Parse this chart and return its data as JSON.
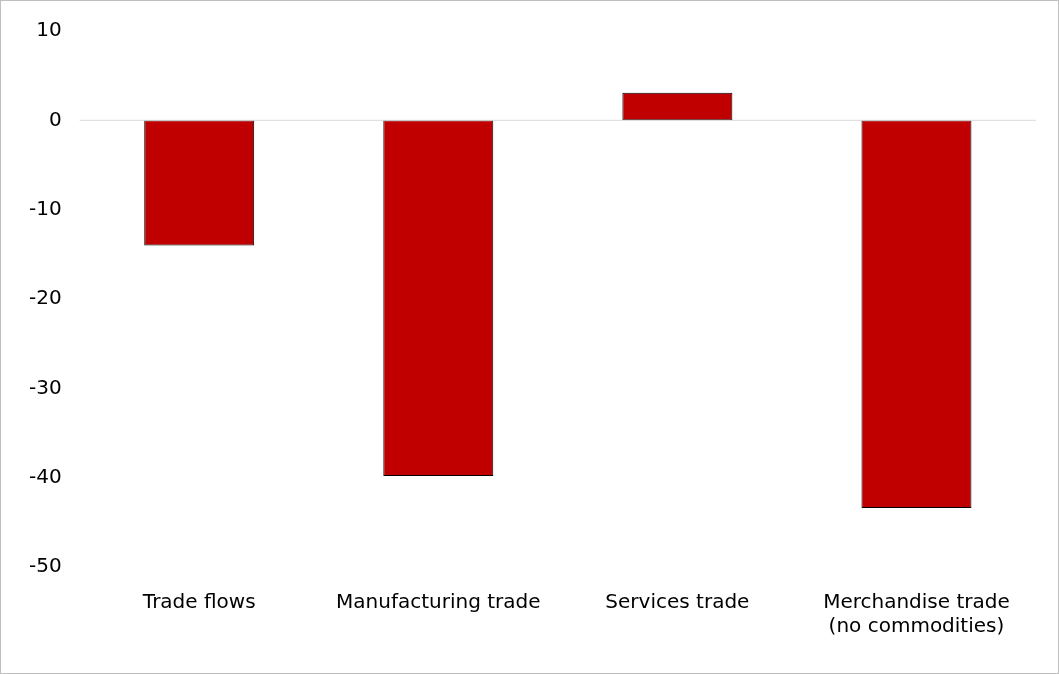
{
  "chart_data": {
    "type": "bar",
    "categories": [
      "Trade flows",
      "Manufacturing trade",
      "Services trade",
      "Merchandise trade\n(no commodities)"
    ],
    "values": [
      -14,
      -39.8,
      3.1,
      -43.4
    ],
    "color": "#c00000",
    "ylim": [
      -50,
      10
    ],
    "yticks": [
      -50,
      -40,
      -30,
      -20,
      -10,
      0,
      10
    ],
    "grid": false,
    "legend": false,
    "ref_lines": [
      {
        "axis": "y",
        "value": 0,
        "color": "#d9d9d9"
      }
    ]
  }
}
